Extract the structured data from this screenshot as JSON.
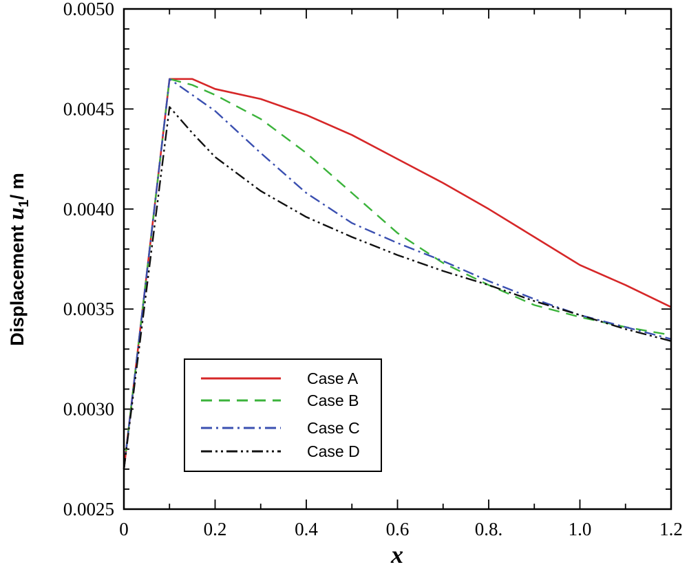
{
  "chart_data": {
    "type": "line",
    "title": "",
    "xlabel": "x",
    "ylabel": {
      "prefix": "Displacement ",
      "symbol": "u",
      "subscript": "1",
      "suffix": "/ m"
    },
    "xlim": [
      0,
      1.2
    ],
    "ylim": [
      0.0025,
      0.005
    ],
    "xticks": [
      {
        "value": 0,
        "label": "0"
      },
      {
        "value": 0.2,
        "label": "0.2"
      },
      {
        "value": 0.4,
        "label": "0.4"
      },
      {
        "value": 0.6,
        "label": "0.6"
      },
      {
        "value": 0.8,
        "label": "0.8."
      },
      {
        "value": 1.0,
        "label": "1.0"
      },
      {
        "value": 1.2,
        "label": "1.2"
      }
    ],
    "yticks": [
      {
        "value": 0.0025,
        "label": "0.0025"
      },
      {
        "value": 0.003,
        "label": "0.0030"
      },
      {
        "value": 0.0035,
        "label": "0.0035"
      },
      {
        "value": 0.004,
        "label": "0.0040"
      },
      {
        "value": 0.0045,
        "label": "0.0045"
      },
      {
        "value": 0.005,
        "label": "0.0050"
      }
    ],
    "grid": false,
    "legend_position": "lower-left",
    "series": [
      {
        "name": "Case A",
        "color": "#d62728",
        "style": "solid",
        "x": [
          0,
          0.1,
          0.15,
          0.2,
          0.3,
          0.4,
          0.5,
          0.6,
          0.7,
          0.8,
          0.9,
          1.0,
          1.1,
          1.2
        ],
        "y": [
          0.0027,
          0.00465,
          0.00465,
          0.0046,
          0.00455,
          0.00447,
          0.00437,
          0.00425,
          0.00413,
          0.004,
          0.00386,
          0.00372,
          0.00362,
          0.00351
        ]
      },
      {
        "name": "Case B",
        "color": "#3bb33b",
        "style": "dashed",
        "x": [
          0,
          0.1,
          0.15,
          0.2,
          0.3,
          0.4,
          0.5,
          0.6,
          0.7,
          0.8,
          0.9,
          1.0,
          1.1,
          1.2
        ],
        "y": [
          0.0027,
          0.00465,
          0.00462,
          0.00457,
          0.00445,
          0.00428,
          0.00408,
          0.00388,
          0.00373,
          0.00362,
          0.00352,
          0.00346,
          0.00341,
          0.00337
        ]
      },
      {
        "name": "Case C",
        "color": "#3a4fb0",
        "style": "dashdot",
        "x": [
          0,
          0.1,
          0.15,
          0.2,
          0.3,
          0.4,
          0.5,
          0.6,
          0.7,
          0.8,
          0.9,
          1.0,
          1.1,
          1.2
        ],
        "y": [
          0.0027,
          0.00465,
          0.00457,
          0.00449,
          0.00428,
          0.00408,
          0.00393,
          0.00383,
          0.00374,
          0.00364,
          0.00355,
          0.00347,
          0.00341,
          0.00335
        ]
      },
      {
        "name": "Case D",
        "color": "#111111",
        "style": "dashdotdot",
        "x": [
          0,
          0.1,
          0.15,
          0.2,
          0.3,
          0.4,
          0.5,
          0.6,
          0.7,
          0.8,
          0.9,
          1.0,
          1.1,
          1.2
        ],
        "y": [
          0.0027,
          0.00451,
          0.00438,
          0.00426,
          0.00409,
          0.00396,
          0.00386,
          0.00377,
          0.00369,
          0.00362,
          0.00354,
          0.00347,
          0.0034,
          0.00334
        ]
      }
    ]
  }
}
